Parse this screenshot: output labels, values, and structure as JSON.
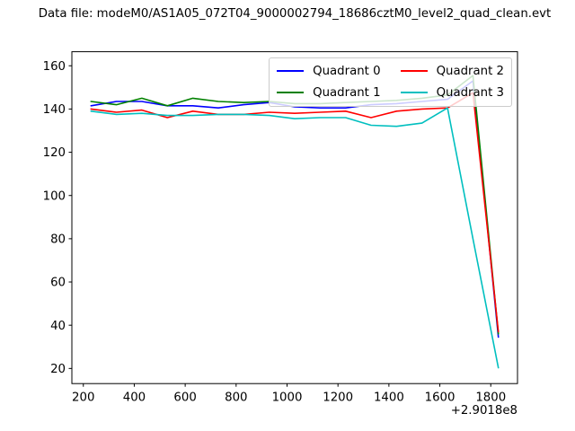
{
  "chart_data": {
    "type": "line",
    "title": "Data file: modeM0/AS1A05_072T04_9000002794_18686cztM0_level2_quad_clean.evt",
    "xlabel": "",
    "ylabel": "",
    "x_axis_offset": "+2.9018e8",
    "grid": false,
    "legend": {
      "position": "upper right",
      "ncol": 2,
      "entries": [
        "Quadrant 0",
        "Quadrant 1",
        "Quadrant 2",
        "Quadrant 3"
      ]
    },
    "xlim": [
      155,
      1905
    ],
    "ylim": [
      13,
      166.5
    ],
    "xticks": [
      200,
      400,
      600,
      800,
      1000,
      1200,
      1400,
      1600,
      1800
    ],
    "yticks": [
      20,
      40,
      60,
      80,
      100,
      120,
      140,
      160
    ],
    "x": [
      230,
      330,
      430,
      530,
      630,
      730,
      830,
      930,
      1030,
      1130,
      1230,
      1330,
      1430,
      1530,
      1630,
      1730,
      1830
    ],
    "series": [
      {
        "name": "Quadrant 0",
        "color": "#0000ff",
        "values": [
          141.5,
          143.5,
          143.5,
          141.5,
          141.5,
          140.5,
          142,
          143,
          141,
          140.5,
          140.5,
          142,
          142.5,
          143.5,
          144.5,
          153,
          34.5
        ]
      },
      {
        "name": "Quadrant 1",
        "color": "#008000",
        "values": [
          143.5,
          142,
          145,
          141.5,
          145,
          143.5,
          143,
          143.5,
          142.5,
          142.5,
          143,
          143.5,
          144,
          145,
          146.5,
          155.5,
          36
        ]
      },
      {
        "name": "Quadrant 2",
        "color": "#ff0000",
        "values": [
          140,
          138.5,
          139.5,
          136,
          139,
          137.5,
          137.5,
          138.5,
          138,
          138.5,
          139,
          136,
          139,
          140,
          140.5,
          147.5,
          37
        ]
      },
      {
        "name": "Quadrant 3",
        "color": "#00bfbf",
        "values": [
          139,
          137.5,
          138,
          137,
          137,
          137.5,
          137.5,
          137,
          135.5,
          136,
          136,
          132.5,
          132,
          133.5,
          140.5,
          80,
          20.3
        ]
      }
    ]
  }
}
